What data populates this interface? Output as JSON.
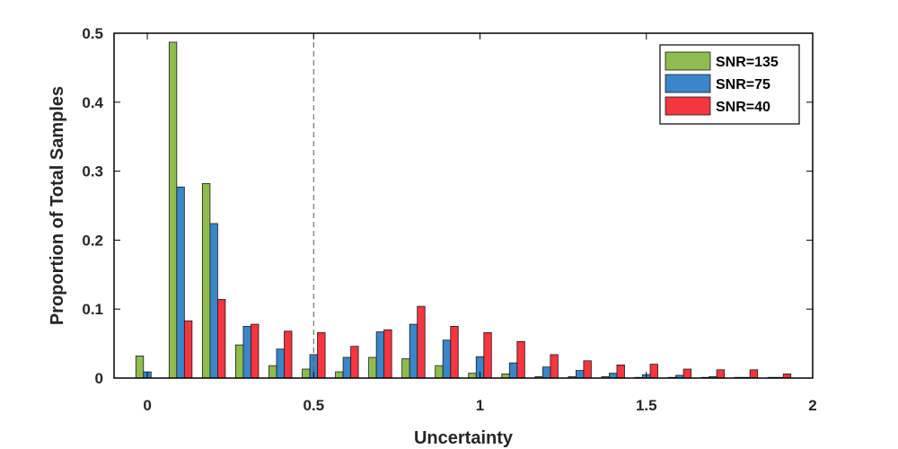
{
  "chart_data": {
    "type": "bar",
    "title": "",
    "xlabel": "Uncertainty",
    "ylabel": "Proportion of Total Samples",
    "xlim": [
      -0.1,
      2
    ],
    "ylim": [
      0,
      0.5
    ],
    "x_ticks": [
      0,
      0.5,
      1,
      1.5,
      2
    ],
    "x_tick_labels": [
      "0",
      "0.5",
      "1",
      "1.5",
      "2"
    ],
    "y_ticks": [
      0,
      0.1,
      0.2,
      0.3,
      0.4,
      0.5
    ],
    "y_tick_labels": [
      "0",
      "0.1",
      "0.2",
      "0.3",
      "0.4",
      "0.5"
    ],
    "grid": false,
    "legend_position": "top-right",
    "reference_line": {
      "x": 0.5,
      "style": "dashed"
    },
    "x": [
      0,
      0.1,
      0.2,
      0.3,
      0.4,
      0.5,
      0.6,
      0.7,
      0.8,
      0.9,
      1.0,
      1.1,
      1.2,
      1.3,
      1.4,
      1.5,
      1.6,
      1.7,
      1.8,
      1.9
    ],
    "series": [
      {
        "name": "SNR=135",
        "color": "#8fbc4f",
        "values": [
          0.032,
          0.487,
          0.282,
          0.048,
          0.018,
          0.013,
          0.009,
          0.03,
          0.028,
          0.018,
          0.007,
          0.006,
          0.002,
          0.002,
          0.002,
          0.001,
          0.001,
          0.001,
          0.001,
          0.001
        ]
      },
      {
        "name": "SNR=75",
        "color": "#3a86c8",
        "values": [
          0.009,
          0.277,
          0.224,
          0.075,
          0.042,
          0.034,
          0.03,
          0.067,
          0.078,
          0.055,
          0.031,
          0.022,
          0.016,
          0.011,
          0.007,
          0.005,
          0.004,
          0.002,
          0.001,
          0.001
        ]
      },
      {
        "name": "SNR=40",
        "color": "#f53540",
        "values": [
          0.0,
          0.083,
          0.114,
          0.078,
          0.068,
          0.066,
          0.046,
          0.07,
          0.104,
          0.075,
          0.066,
          0.053,
          0.034,
          0.025,
          0.019,
          0.02,
          0.013,
          0.012,
          0.012,
          0.006
        ]
      }
    ]
  }
}
